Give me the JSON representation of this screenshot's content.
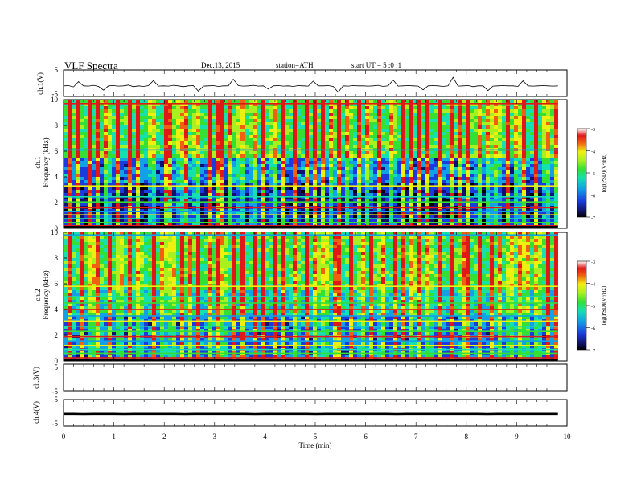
{
  "header": {
    "title": "VLF  Spectra",
    "date": "Dec.13, 2015",
    "station": "station=ATH",
    "start": "start  UT  =   5  :0  :1"
  },
  "chart_data": [
    {
      "type": "line",
      "panel": "ch1-waveform",
      "ylabel": "ch.1(V)",
      "yticks": [
        "5",
        "-5"
      ],
      "ylim": [
        -5,
        5
      ],
      "series": [
        {
          "values": [
            -1.0,
            -0.9,
            -1.4,
            0.6,
            -1.0,
            -1.1,
            -0.8,
            -1.2,
            -2.6,
            -1.0,
            -0.9,
            -1.1,
            -1.0,
            -0.7,
            -1.3,
            -1.0,
            -1.2,
            -0.9,
            1.0,
            -1.1,
            -1.0,
            -1.1,
            -0.8,
            -1.0,
            -1.3,
            -1.0,
            -0.9,
            -3.0,
            -1.1,
            -1.0,
            -0.9,
            -1.2,
            -1.0,
            -1.0,
            1.5,
            -0.9,
            -1.1,
            -1.0,
            -0.8,
            -1.1,
            -1.0,
            -2.2,
            -1.0,
            -0.9,
            -1.1,
            -1.0,
            -1.2,
            -0.9,
            -1.0,
            -1.1,
            0.8,
            -1.0,
            -1.0,
            -0.9,
            -1.2,
            -3.4,
            -1.0,
            -1.1,
            -0.9,
            -1.0,
            -1.0,
            -1.1,
            -1.0,
            -0.8,
            -1.2,
            -1.0,
            1.2,
            -1.1,
            -1.0,
            -0.9,
            -1.0,
            -1.1,
            -2.5,
            -1.0,
            -0.9,
            -1.0,
            -1.2,
            -1.0,
            2.2,
            -1.1,
            -1.0,
            -0.9,
            -1.3,
            -1.0,
            -1.0,
            -2.8,
            -1.1,
            -1.0,
            -0.9,
            -1.0,
            -1.0,
            -1.2,
            0.9,
            -1.0,
            -1.1,
            -1.0,
            -0.9,
            -1.0,
            -1.1,
            -1.0
          ]
        }
      ]
    },
    {
      "type": "heatmap",
      "panel": "ch1-spectrogram",
      "ylabel": "ch.1\nFrequency (kHz)",
      "yticks": [
        "0",
        "2",
        "4",
        "6",
        "8",
        "10"
      ],
      "ylim": [
        0,
        10
      ],
      "colorbar": {
        "label": "log(PSD)(V²/Hz)",
        "ticks": [
          "-3",
          "-4",
          "-5",
          "-6",
          "-7"
        ],
        "range": [
          -7,
          -3
        ]
      },
      "bursts_min": [
        0.08,
        0.25,
        0.48,
        0.62,
        0.83,
        1.05,
        1.28,
        1.45,
        1.72,
        1.98,
        2.1,
        2.28,
        2.42,
        2.6,
        2.88,
        3.02,
        3.12,
        3.3,
        3.48,
        3.72,
        3.9,
        4.12,
        4.3,
        4.55,
        4.78,
        4.95,
        5.12,
        5.3,
        5.42,
        5.62,
        5.85,
        6.02,
        6.25,
        6.5,
        6.7,
        6.88,
        7.02,
        7.2,
        7.42,
        7.65,
        7.85,
        7.98,
        8.2,
        8.42,
        8.58,
        8.8,
        8.98,
        9.12,
        9.35,
        9.55,
        9.72
      ],
      "lines_khz": [
        0.2,
        0.45,
        0.75,
        1.05,
        1.3,
        1.6,
        2.05,
        2.45,
        3.3,
        6.1,
        9.7
      ]
    },
    {
      "type": "heatmap",
      "panel": "ch2-spectrogram",
      "ylabel": "ch.2\nFrequency (kHz)",
      "yticks": [
        "0",
        "2",
        "4",
        "6",
        "8",
        "10"
      ],
      "ylim": [
        0,
        10
      ],
      "colorbar": {
        "label": "log(PSD)(V²/Hz)",
        "ticks": [
          "-3",
          "-4",
          "-5",
          "-6",
          "-7"
        ],
        "range": [
          -7,
          -3
        ]
      },
      "bursts_min": [
        0.1,
        0.3,
        0.52,
        0.66,
        0.86,
        1.08,
        1.3,
        1.47,
        1.76,
        1.95,
        2.12,
        2.3,
        2.45,
        2.64,
        2.9,
        3.05,
        3.15,
        3.34,
        3.5,
        3.75,
        3.92,
        4.15,
        4.33,
        4.58,
        4.8,
        4.98,
        5.15,
        5.33,
        5.45,
        5.66,
        5.88,
        6.05,
        6.28,
        6.53,
        6.73,
        6.9,
        7.05,
        7.22,
        7.45,
        7.68,
        7.88,
        8.0,
        8.24,
        8.45,
        8.6,
        8.83,
        9.0,
        9.15,
        9.38,
        9.58,
        9.74
      ],
      "lines_khz": [
        0.25,
        0.6,
        0.9,
        1.2,
        1.55,
        1.9,
        2.3,
        2.7,
        3.1,
        3.5,
        4.0,
        4.5,
        5.0,
        5.8,
        9.8
      ]
    },
    {
      "type": "line",
      "panel": "ch3-waveform",
      "ylabel": "ch.3(V)",
      "yticks": [
        "5",
        "-5"
      ],
      "ylim": [
        -5,
        5
      ],
      "series": [
        {
          "values": []
        }
      ]
    },
    {
      "type": "line",
      "panel": "ch4-waveform",
      "ylabel": "ch.4(V)",
      "yticks": [
        "5",
        "-5"
      ],
      "ylim": [
        -5,
        5
      ],
      "series": [
        {
          "values": [
            -0.4,
            -0.4,
            -0.45,
            -0.4,
            -0.4,
            -0.4,
            -0.45,
            -0.4,
            -0.4,
            -0.4,
            -0.4,
            -0.4,
            -0.45,
            -0.4,
            -0.4,
            -0.4,
            -0.4,
            -0.4,
            -0.4,
            -0.45,
            -0.4,
            -0.4,
            -0.4,
            -0.4,
            -0.4,
            -0.45,
            -0.4,
            -0.4,
            -0.4,
            -0.4,
            -0.4,
            -0.4,
            -0.4,
            -0.45,
            -0.4,
            -0.4,
            -0.4,
            -0.4,
            -0.4,
            -0.4,
            -0.4,
            -0.4,
            -0.45,
            -0.4,
            -0.4,
            -0.4,
            -0.4,
            -0.4,
            -0.4,
            -0.4
          ]
        }
      ]
    },
    {
      "type": "axis",
      "panel": "time-axis",
      "xlabel": "Time (min)",
      "xticks": [
        "0",
        "1",
        "2",
        "3",
        "4",
        "5",
        "6",
        "7",
        "8",
        "9",
        "10"
      ],
      "xlim": [
        0,
        10
      ],
      "data_end_min": 9.82
    }
  ]
}
